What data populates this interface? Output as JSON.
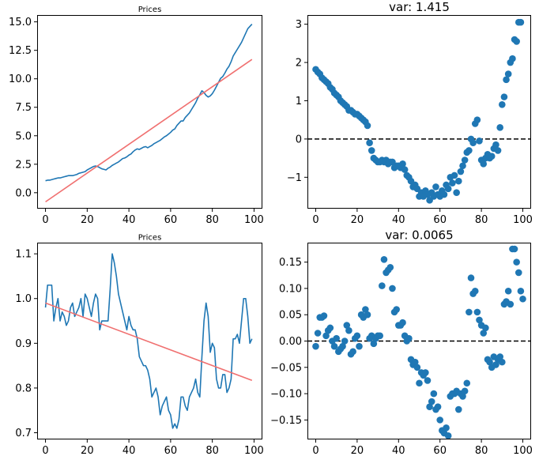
{
  "chart_data": [
    {
      "id": "top-left",
      "type": "line",
      "title": "Prices",
      "xlim": [
        -4,
        104
      ],
      "ylim": [
        -1.4,
        15.6
      ],
      "xticks": [
        0,
        20,
        40,
        60,
        80,
        100
      ],
      "yticks": [
        0.0,
        2.5,
        5.0,
        7.5,
        10.0,
        12.5,
        15.0
      ],
      "ytick_labels": [
        "0.0",
        "2.5",
        "5.0",
        "7.5",
        "10.0",
        "12.5",
        "15.0"
      ],
      "series": [
        {
          "color": "#1f77b4",
          "x_start": 0,
          "x_step": 1,
          "values": [
            1.05,
            1.1,
            1.1,
            1.15,
            1.2,
            1.25,
            1.3,
            1.3,
            1.35,
            1.4,
            1.45,
            1.5,
            1.5,
            1.5,
            1.55,
            1.6,
            1.7,
            1.75,
            1.8,
            1.85,
            2.0,
            2.1,
            2.2,
            2.3,
            2.35,
            2.3,
            2.2,
            2.1,
            2.05,
            2.0,
            2.15,
            2.25,
            2.4,
            2.5,
            2.6,
            2.7,
            2.85,
            3.0,
            3.05,
            3.15,
            3.3,
            3.4,
            3.6,
            3.75,
            3.85,
            3.8,
            3.9,
            4.0,
            4.05,
            3.95,
            4.05,
            4.15,
            4.3,
            4.4,
            4.5,
            4.6,
            4.75,
            4.9,
            5.0,
            5.15,
            5.3,
            5.5,
            5.6,
            5.9,
            6.1,
            6.3,
            6.3,
            6.6,
            6.8,
            7.0,
            7.3,
            7.6,
            7.9,
            8.3,
            8.6,
            8.95,
            8.8,
            8.55,
            8.4,
            8.5,
            8.7,
            9.0,
            9.35,
            9.7,
            10.05,
            10.2,
            10.5,
            10.85,
            11.1,
            11.5,
            12.0,
            12.3,
            12.6,
            12.9,
            13.2,
            13.6,
            14.0,
            14.4,
            14.6,
            14.8
          ]
        },
        {
          "color": "#f07070",
          "x": [
            0,
            99
          ],
          "values": [
            -0.8,
            11.7
          ]
        }
      ]
    },
    {
      "id": "top-right",
      "type": "scatter",
      "title": "var: 1.415",
      "xlim": [
        -4,
        104
      ],
      "ylim": [
        -1.82,
        3.24
      ],
      "xticks": [
        0,
        20,
        40,
        60,
        80,
        100
      ],
      "yticks": [
        -1,
        0,
        1,
        2,
        3
      ],
      "ytick_labels": [
        "−1",
        "0",
        "1",
        "2",
        "3"
      ],
      "reference_line": {
        "y": 0,
        "style": "dashed",
        "color": "#000000"
      },
      "series": [
        {
          "color": "#1f77b4",
          "x_start": 0,
          "x_step": 1,
          "values": [
            1.82,
            1.75,
            1.7,
            1.6,
            1.55,
            1.5,
            1.45,
            1.35,
            1.3,
            1.2,
            1.15,
            1.1,
            1.0,
            0.95,
            0.9,
            0.85,
            0.75,
            0.75,
            0.7,
            0.65,
            0.65,
            0.6,
            0.55,
            0.5,
            0.45,
            0.35,
            -0.1,
            -0.3,
            -0.5,
            -0.55,
            -0.6,
            -0.6,
            -0.55,
            -0.6,
            -0.55,
            -0.65,
            -0.6,
            -0.6,
            -0.75,
            -0.7,
            -0.7,
            -0.75,
            -0.65,
            -0.8,
            -0.95,
            -1.0,
            -1.1,
            -1.25,
            -1.2,
            -1.3,
            -1.5,
            -1.4,
            -1.5,
            -1.35,
            -1.45,
            -1.6,
            -1.4,
            -1.5,
            -1.25,
            -1.45,
            -1.5,
            -1.35,
            -1.45,
            -1.2,
            -1.3,
            -1.0,
            -1.15,
            -0.95,
            -1.4,
            -1.1,
            -0.85,
            -0.7,
            -0.55,
            -0.35,
            -0.3,
            0.0,
            -0.1,
            0.4,
            0.5,
            -0.05,
            -0.55,
            -0.65,
            -0.5,
            -0.4,
            -0.5,
            -0.45,
            -0.25,
            -0.15,
            -0.3,
            0.3,
            0.9,
            1.1,
            1.55,
            1.7,
            2.0,
            2.1,
            2.6,
            2.55,
            3.05,
            3.05
          ]
        }
      ]
    },
    {
      "id": "bottom-left",
      "type": "line",
      "title": "Prices",
      "xlim": [
        -4,
        104
      ],
      "ylim": [
        0.685,
        1.125
      ],
      "xticks": [
        0,
        20,
        40,
        60,
        80,
        100
      ],
      "yticks": [
        0.7,
        0.8,
        0.9,
        1.0,
        1.1
      ],
      "ytick_labels": [
        "0.7",
        "0.8",
        "0.9",
        "1.0",
        "1.1"
      ],
      "series": [
        {
          "color": "#1f77b4",
          "x_start": 0,
          "x_step": 1,
          "values": [
            0.98,
            1.03,
            1.03,
            1.03,
            0.95,
            0.98,
            1.0,
            0.95,
            0.97,
            0.96,
            0.94,
            0.95,
            0.98,
            0.99,
            0.96,
            0.97,
            0.98,
            1.0,
            0.96,
            1.01,
            1.0,
            0.98,
            0.96,
            0.99,
            1.01,
            1.0,
            0.93,
            0.95,
            0.95,
            0.95,
            0.95,
            1.02,
            1.1,
            1.08,
            1.05,
            1.01,
            0.99,
            0.97,
            0.95,
            0.93,
            0.96,
            0.94,
            0.93,
            0.93,
            0.91,
            0.87,
            0.86,
            0.85,
            0.85,
            0.84,
            0.82,
            0.78,
            0.79,
            0.8,
            0.78,
            0.74,
            0.76,
            0.77,
            0.78,
            0.75,
            0.74,
            0.71,
            0.72,
            0.71,
            0.73,
            0.78,
            0.78,
            0.76,
            0.75,
            0.78,
            0.79,
            0.8,
            0.82,
            0.79,
            0.78,
            0.87,
            0.95,
            0.99,
            0.96,
            0.88,
            0.9,
            0.89,
            0.82,
            0.8,
            0.8,
            0.83,
            0.83,
            0.79,
            0.8,
            0.82,
            0.91,
            0.91,
            0.92,
            0.9,
            0.95,
            1.0,
            1.0,
            0.96,
            0.9,
            0.91
          ]
        },
        {
          "color": "#f07070",
          "x": [
            0,
            99
          ],
          "values": [
            0.99,
            0.817
          ]
        }
      ]
    },
    {
      "id": "bottom-right",
      "type": "scatter",
      "title": "var: 0.0065",
      "xlim": [
        -4,
        104
      ],
      "ylim": [
        -0.187,
        0.187
      ],
      "xticks": [
        0,
        20,
        40,
        60,
        80,
        100
      ],
      "yticks": [
        -0.15,
        -0.1,
        -0.05,
        0.0,
        0.05,
        0.1,
        0.15
      ],
      "ytick_labels": [
        "−0.15",
        "−0.10",
        "−0.05",
        "0.00",
        "0.05",
        "0.10",
        "0.15"
      ],
      "reference_line": {
        "y": 0,
        "style": "dashed",
        "color": "#000000"
      },
      "series": [
        {
          "color": "#1f77b4",
          "x_start": 0,
          "x_step": 1,
          "values": [
            -0.01,
            0.015,
            0.045,
            0.045,
            0.048,
            0.01,
            0.02,
            0.025,
            0.0,
            -0.01,
            0.005,
            -0.02,
            -0.015,
            -0.01,
            0.0,
            0.03,
            0.02,
            -0.025,
            -0.02,
            0.005,
            0.01,
            -0.01,
            0.05,
            0.045,
            0.06,
            0.05,
            0.005,
            0.01,
            -0.005,
            0.005,
            0.01,
            0.01,
            0.105,
            0.155,
            0.13,
            0.135,
            0.14,
            0.1,
            0.055,
            0.06,
            0.03,
            0.03,
            0.035,
            0.01,
            0.0,
            0.005,
            -0.035,
            -0.045,
            -0.04,
            -0.05,
            -0.08,
            -0.06,
            -0.065,
            -0.06,
            -0.075,
            -0.125,
            -0.115,
            -0.1,
            -0.13,
            -0.125,
            -0.15,
            -0.17,
            -0.175,
            -0.165,
            -0.18,
            -0.105,
            -0.1,
            -0.1,
            -0.095,
            -0.13,
            -0.1,
            -0.105,
            -0.095,
            -0.08,
            0.055,
            0.12,
            0.09,
            0.095,
            0.055,
            0.04,
            0.03,
            0.015,
            0.025,
            -0.035,
            -0.04,
            -0.05,
            -0.03,
            -0.045,
            -0.035,
            -0.03,
            -0.04,
            0.07,
            0.075,
            0.095,
            0.07,
            0.175,
            0.175,
            0.15,
            0.13,
            0.095,
            0.08
          ]
        }
      ]
    }
  ]
}
